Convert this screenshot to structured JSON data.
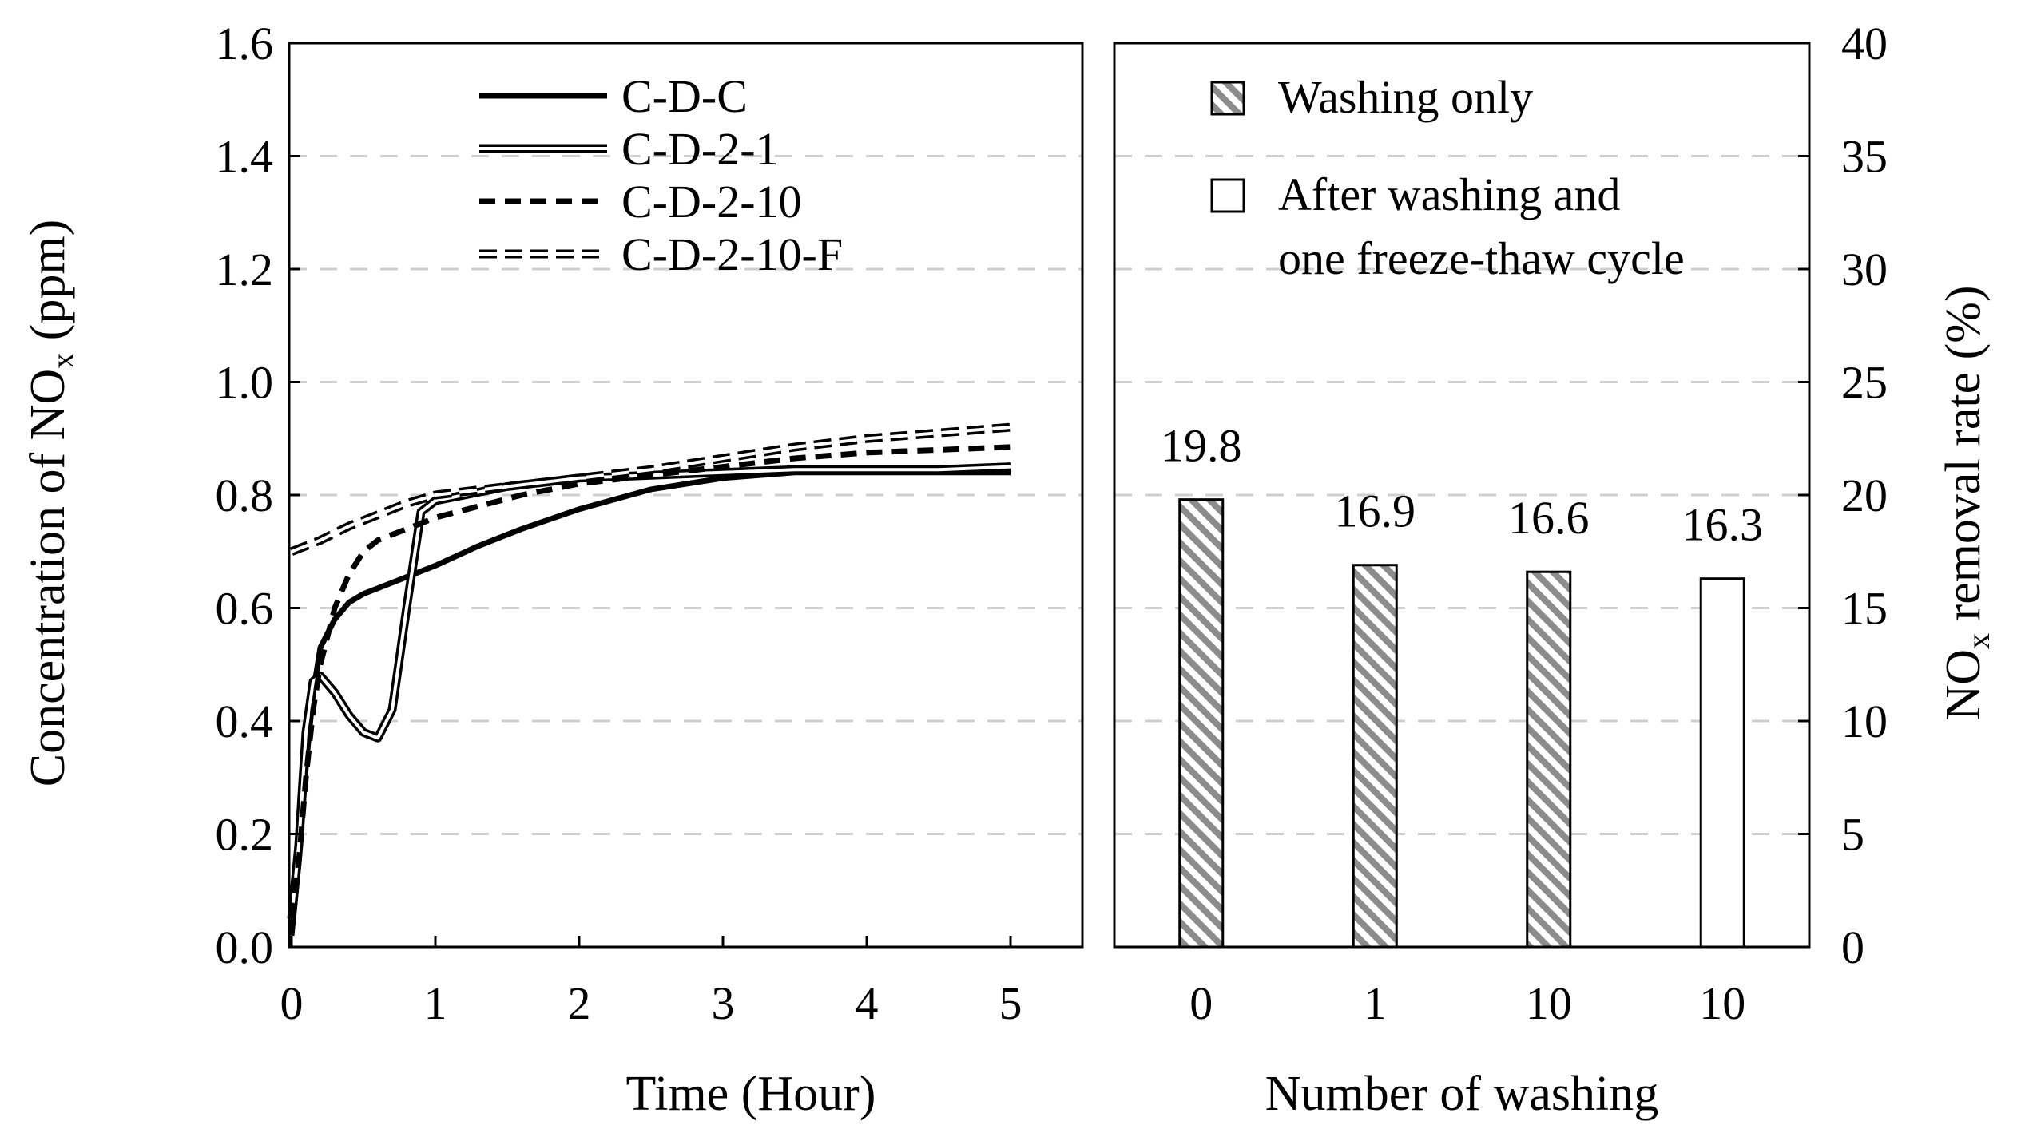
{
  "chart_data": [
    {
      "type": "line",
      "xlabel": "Time (Hour)",
      "ylabel": "Concentration of NO",
      "ylabel_sub": "x",
      "ylabel_suffix": " (ppm)",
      "xlim": [
        0,
        5
      ],
      "ylim": [
        0,
        1.6
      ],
      "xticks": [
        0,
        1,
        2,
        3,
        4,
        5
      ],
      "yticks": [
        "0.0",
        "0.2",
        "0.4",
        "0.6",
        "0.8",
        "1.0",
        "1.2",
        "1.4",
        "1.6"
      ],
      "grid": "horizontal dashed",
      "legend_position": "top-left",
      "series": [
        {
          "name": "C-D-C",
          "style": "solid-thick",
          "x": [
            0,
            0.05,
            0.1,
            0.15,
            0.2,
            0.3,
            0.4,
            0.5,
            0.6,
            0.8,
            1.0,
            1.3,
            1.6,
            2.0,
            2.5,
            3.0,
            3.5,
            4.0,
            4.5,
            5.0
          ],
          "y": [
            0.02,
            0.15,
            0.32,
            0.45,
            0.53,
            0.58,
            0.61,
            0.625,
            0.635,
            0.655,
            0.675,
            0.71,
            0.74,
            0.775,
            0.81,
            0.83,
            0.84,
            0.84,
            0.84,
            0.84
          ]
        },
        {
          "name": "C-D-2-1",
          "style": "double-line",
          "x": [
            0,
            0.05,
            0.1,
            0.15,
            0.2,
            0.3,
            0.4,
            0.5,
            0.6,
            0.7,
            0.8,
            0.9,
            1.0,
            1.5,
            2.0,
            2.5,
            3.0,
            3.5,
            4.0,
            4.5,
            5.0
          ],
          "y": [
            0.05,
            0.18,
            0.38,
            0.47,
            0.48,
            0.45,
            0.41,
            0.38,
            0.37,
            0.42,
            0.6,
            0.77,
            0.79,
            0.815,
            0.83,
            0.835,
            0.84,
            0.845,
            0.845,
            0.845,
            0.85
          ]
        },
        {
          "name": "C-D-2-10",
          "style": "dashed",
          "x": [
            0,
            0.05,
            0.1,
            0.15,
            0.2,
            0.3,
            0.4,
            0.5,
            0.6,
            0.8,
            1.0,
            1.3,
            1.6,
            2.0,
            2.5,
            3.0,
            3.5,
            4.0,
            4.5,
            5.0
          ],
          "y": [
            0.05,
            0.15,
            0.3,
            0.42,
            0.5,
            0.6,
            0.66,
            0.7,
            0.72,
            0.74,
            0.76,
            0.78,
            0.8,
            0.82,
            0.835,
            0.85,
            0.865,
            0.875,
            0.88,
            0.885
          ]
        },
        {
          "name": "C-D-2-10-F",
          "style": "double-dashed",
          "x": [
            0,
            0.2,
            0.4,
            0.6,
            0.8,
            1.0,
            1.5,
            2.0,
            2.5,
            3.0,
            3.5,
            4.0,
            4.5,
            5.0
          ],
          "y": [
            0.7,
            0.72,
            0.745,
            0.765,
            0.785,
            0.8,
            0.815,
            0.83,
            0.845,
            0.865,
            0.885,
            0.9,
            0.91,
            0.92
          ]
        }
      ]
    },
    {
      "type": "bar",
      "xlabel": "Number of washing",
      "ylabel": "NO",
      "ylabel_sub": "x",
      "ylabel_suffix": " removal rate (%)",
      "ylim": [
        0,
        40
      ],
      "yticks": [
        "0",
        "5",
        "10",
        "15",
        "20",
        "25",
        "30",
        "35",
        "40"
      ],
      "grid": "horizontal dashed",
      "legend_position": "top",
      "categories": [
        "0",
        "1",
        "10",
        "10"
      ],
      "values": [
        19.8,
        16.9,
        16.6,
        16.3
      ],
      "value_labels": [
        "19.8",
        "16.9",
        "16.6",
        "16.3"
      ],
      "bar_types": [
        "hatched",
        "hatched",
        "hatched",
        "plain"
      ],
      "legend": [
        {
          "pattern": "hatched",
          "lines": [
            "Washing only"
          ]
        },
        {
          "pattern": "plain",
          "lines": [
            "After washing and",
            "one freeze-thaw cycle"
          ]
        }
      ]
    }
  ]
}
